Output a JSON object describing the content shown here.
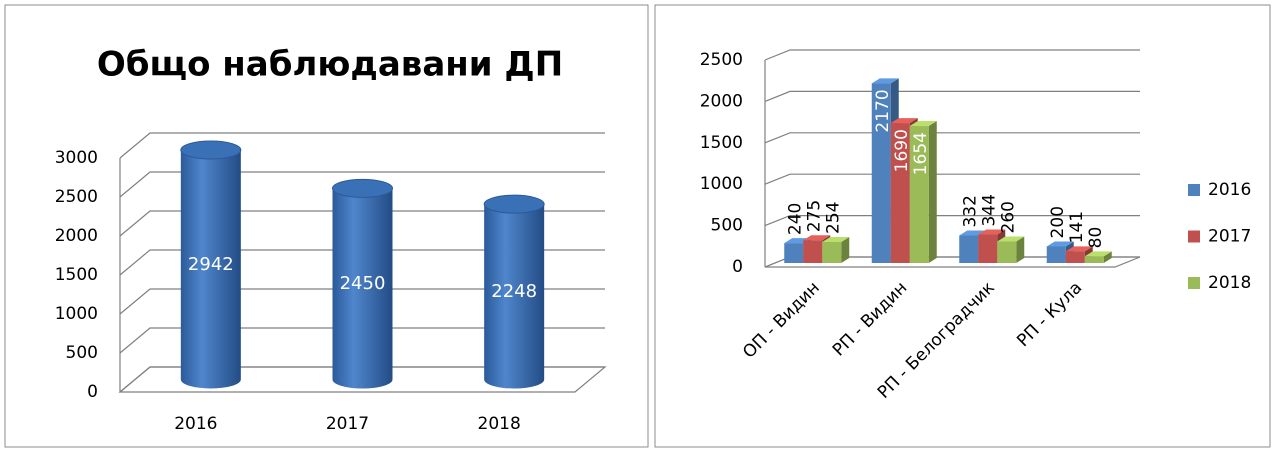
{
  "chart_data": [
    {
      "type": "cylinder",
      "title": "Общо наблюдавани ДП",
      "categories": [
        "2016",
        "2017",
        "2018"
      ],
      "values": [
        2942,
        2450,
        2248
      ],
      "color": "#3f73b8",
      "ylim": [
        0,
        3000
      ],
      "yticks": [
        0,
        500,
        1000,
        1500,
        2000,
        2500,
        3000
      ],
      "grid": true
    },
    {
      "type": "bar3d",
      "categories": [
        "ОП - Видин",
        "РП - Видин",
        "РП - Белоградчик",
        "РП - Кула"
      ],
      "series": [
        {
          "name": "2016",
          "color": "#4f81bd",
          "values": [
            240,
            2170,
            332,
            200
          ]
        },
        {
          "name": "2017",
          "color": "#c0504d",
          "values": [
            275,
            1690,
            344,
            141
          ]
        },
        {
          "name": "2018",
          "color": "#9bbb59",
          "values": [
            254,
            1654,
            260,
            80
          ]
        }
      ],
      "ylim": [
        0,
        2500
      ],
      "yticks": [
        0,
        500,
        1000,
        1500,
        2000,
        2500
      ],
      "grid": true,
      "legend": "right"
    }
  ]
}
